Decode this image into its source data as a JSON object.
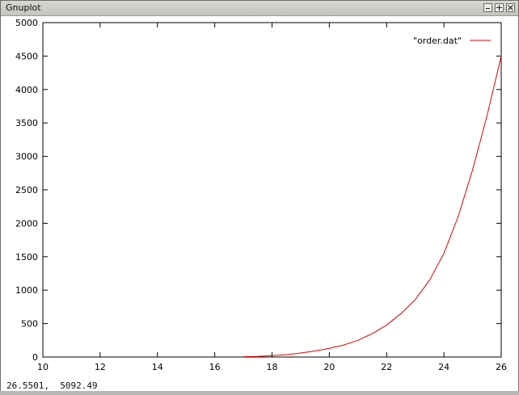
{
  "window": {
    "title": "Gnuplot",
    "buttons": {
      "minimize_icon": "minimize-icon",
      "maximize_icon": "maximize-icon",
      "close_icon": "close-icon"
    }
  },
  "status": {
    "coordinates": "26.5501,  5092.49"
  },
  "colors": {
    "series": "#e00000",
    "axis": "#000000",
    "grid": "#a0a0a0"
  },
  "chart_data": {
    "type": "line",
    "title": "",
    "xlabel": "",
    "ylabel": "",
    "xlim": [
      10,
      26
    ],
    "ylim": [
      0,
      5000
    ],
    "xticks": [
      10,
      12,
      14,
      16,
      18,
      20,
      22,
      24,
      26
    ],
    "yticks": [
      0,
      500,
      1000,
      1500,
      2000,
      2500,
      3000,
      3500,
      4000,
      4500,
      5000
    ],
    "grid": true,
    "legend_position": "top-right",
    "series": [
      {
        "name": "\"order.dat\"",
        "x": [
          17,
          17.5,
          18,
          18.5,
          19,
          19.5,
          20,
          20.5,
          21,
          21.5,
          22,
          22.5,
          23,
          23.5,
          24,
          24.5,
          25,
          25.5,
          26
        ],
        "y": [
          5,
          10,
          20,
          35,
          60,
          90,
          130,
          180,
          250,
          350,
          480,
          650,
          860,
          1150,
          1550,
          2100,
          2800,
          3600,
          4500
        ]
      }
    ]
  }
}
